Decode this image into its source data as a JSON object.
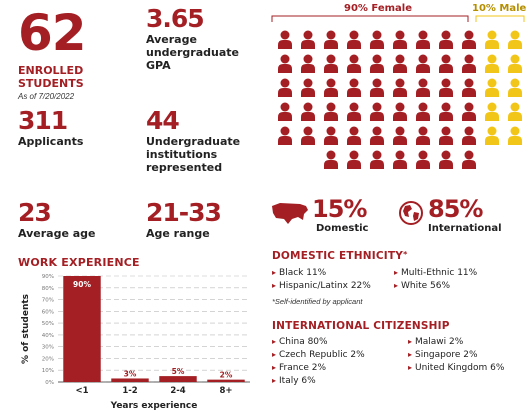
{
  "stats": {
    "enrolled": {
      "value": "62",
      "label": "ENROLLED\nSTUDENTS",
      "note": "As of 7/20/2022"
    },
    "gpa": {
      "value": "3.65",
      "label": "Average\nundergraduate\nGPA"
    },
    "applicants": {
      "value": "311",
      "label": "Applicants"
    },
    "institutions": {
      "value": "44",
      "label": "Undergraduate\ninstitutions\nrepresented"
    },
    "age": {
      "value": "23",
      "label": "Average age"
    },
    "age_range": {
      "value": "21-33",
      "label": "Age range"
    }
  },
  "gender": {
    "female_label": "90% Female",
    "male_label": "10% Male",
    "female_color": "#a31f24",
    "male_color": "#f2c618",
    "female_count": 56,
    "male_count": 6,
    "icon": "person-icon"
  },
  "origin": {
    "domestic": {
      "value": "15%",
      "label": "Domestic",
      "icon": "usa-map-icon"
    },
    "international": {
      "value": "85%",
      "label": "International",
      "icon": "globe-icon"
    }
  },
  "domestic_ethnicity": {
    "title": "DOMESTIC ETHNICITY",
    "title_mark": "*",
    "col1": [
      "Black 11%",
      "Hispanic/Latinx 22%"
    ],
    "col2": [
      "Multi-Ethnic 11%",
      "White 56%"
    ],
    "footnote": "*Self-identified by applicant"
  },
  "international_citizenship": {
    "title": "INTERNATIONAL CITIZENSHIP",
    "col1": [
      "China 80%",
      "Czech Republic 2%",
      "France 2%",
      "Italy 6%"
    ],
    "col2": [
      "Malawi 2%",
      "Singapore 2%",
      "United Kingdom 6%"
    ]
  },
  "chart_data": {
    "type": "bar",
    "title": "WORK EXPERIENCE",
    "categories": [
      "<1",
      "1-2",
      "2-4",
      "8+"
    ],
    "values": [
      90,
      3,
      5,
      2
    ],
    "value_labels": [
      "90%",
      "3%",
      "5%",
      "2%"
    ],
    "xlabel": "Years experience",
    "ylabel": "% of students",
    "ylim": [
      0,
      90
    ],
    "yticks": [
      "0%",
      "10%",
      "20%",
      "30%",
      "40%",
      "50%",
      "60%",
      "70%",
      "80%",
      "90%"
    ],
    "grid": true,
    "bar_color": "#a31f24"
  }
}
